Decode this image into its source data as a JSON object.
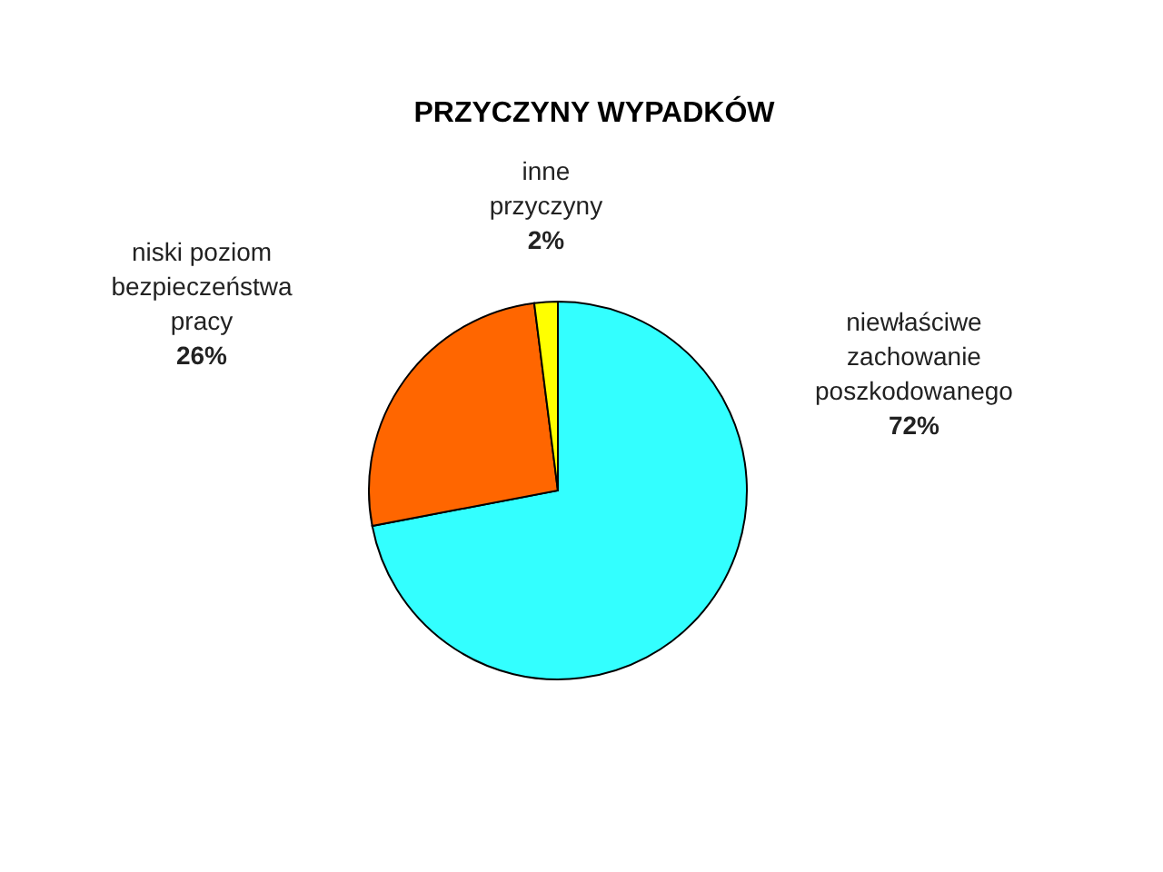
{
  "chart_data": {
    "type": "pie",
    "title": "PRZYCZYNY WYPADKÓW",
    "categories": [
      "niewłaściwe zachowanie poszkodowanego",
      "niski poziom bezpieczeństwa pracy",
      "inne przyczyny"
    ],
    "values": [
      72,
      26,
      2
    ],
    "value_labels": [
      "72%",
      "26%",
      "2%"
    ],
    "colors": [
      "#33ffff",
      "#ff6600",
      "#ffff00"
    ]
  }
}
